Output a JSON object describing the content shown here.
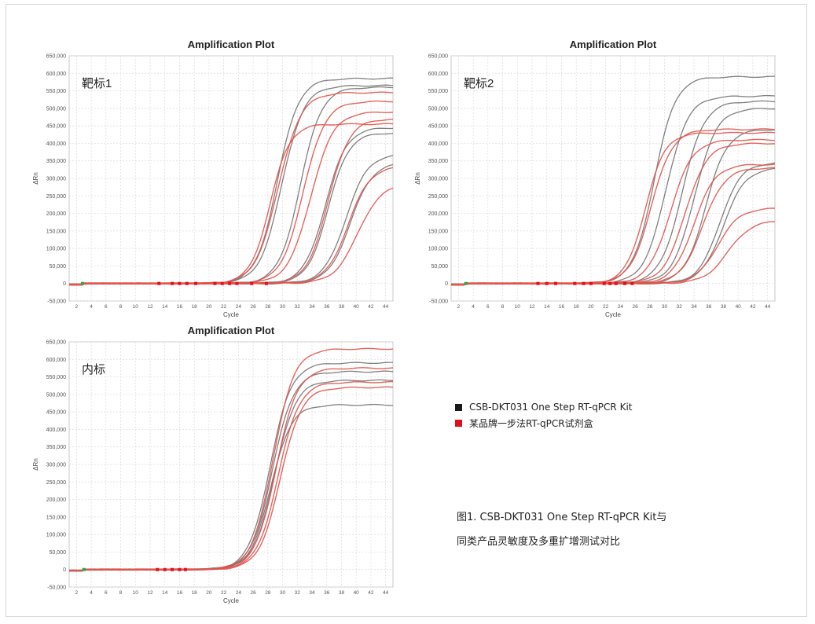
{
  "colors": {
    "kit": "#1a1a1a",
    "competitor": "#e0101c",
    "kit_line": "#6a6a6a",
    "competitor_line": "#e2534b",
    "grid": "#dcdcdc",
    "marker_green": "#2aa84a"
  },
  "legend": {
    "items": [
      {
        "label": "CSB-DKT031 One Step RT-qPCR Kit",
        "color": "#1a1a1a"
      },
      {
        "label": "某品牌一步法RT-qPCR试剂盒",
        "color": "#e0101c"
      }
    ]
  },
  "caption": {
    "line1": "图1. CSB-DKT031 One Step RT-qPCR Kit与",
    "line2": "同类产品灵敏度及多重扩增测试对比"
  },
  "chart_data": [
    {
      "type": "line",
      "title": "Amplification Plot",
      "panel_label": "靶标1",
      "xlabel": "Cycle",
      "ylabel": "ΔRn",
      "xlim": [
        1,
        45
      ],
      "ylim": [
        -50000,
        650000
      ],
      "x_ticks": [
        "2",
        "4",
        "6",
        "8",
        "10",
        "12",
        "14",
        "16",
        "18",
        "20",
        "22",
        "24",
        "26",
        "28",
        "30",
        "32",
        "34",
        "36",
        "38",
        "40",
        "42",
        "44"
      ],
      "y_ticks": [
        "-50,000",
        "0",
        "50,000",
        "100,000",
        "150,000",
        "200,000",
        "250,000",
        "300,000",
        "350,000",
        "400,000",
        "450,000",
        "500,000",
        "550,000",
        "600,000",
        "650,000"
      ],
      "series": [
        {
          "name": "kit",
          "kit": true,
          "ct": 29.3,
          "plateau": 585000,
          "slope": 1.45
        },
        {
          "name": "kit",
          "kit": true,
          "ct": 29.9,
          "plateau": 565000,
          "slope": 1.5
        },
        {
          "name": "kit",
          "kit": true,
          "ct": 32.4,
          "plateau": 560000,
          "slope": 1.45
        },
        {
          "name": "kit",
          "kit": true,
          "ct": 35.8,
          "plateau": 445000,
          "slope": 1.45
        },
        {
          "name": "kit",
          "kit": true,
          "ct": 36.2,
          "plateau": 430000,
          "slope": 1.4
        },
        {
          "name": "kit",
          "kit": true,
          "ct": 38.6,
          "plateau": 370000,
          "slope": 1.5
        },
        {
          "name": "kit",
          "kit": true,
          "ct": 39.2,
          "plateau": 345000,
          "slope": 1.5
        },
        {
          "name": "competitor",
          "kit": false,
          "ct": 28.3,
          "plateau": 455000,
          "slope": 1.35
        },
        {
          "name": "competitor",
          "kit": false,
          "ct": 29.4,
          "plateau": 545000,
          "slope": 1.55
        },
        {
          "name": "competitor",
          "kit": false,
          "ct": 32.8,
          "plateau": 520000,
          "slope": 1.5
        },
        {
          "name": "competitor",
          "kit": false,
          "ct": 33.8,
          "plateau": 490000,
          "slope": 1.55
        },
        {
          "name": "competitor",
          "kit": false,
          "ct": 36.2,
          "plateau": 470000,
          "slope": 1.45
        },
        {
          "name": "competitor",
          "kit": false,
          "ct": 38.9,
          "plateau": 335000,
          "slope": 1.5
        },
        {
          "name": "competitor",
          "kit": false,
          "ct": 40.2,
          "plateau": 285000,
          "slope": 1.6
        }
      ],
      "markers": [
        {
          "x": 2.8,
          "color": "#2aa84a"
        },
        {
          "x": 13.2,
          "color": "#e0101c"
        },
        {
          "x": 15.0,
          "color": "#e0101c"
        },
        {
          "x": 16.0,
          "color": "#e0101c"
        },
        {
          "x": 17.0,
          "color": "#e0101c"
        },
        {
          "x": 18.2,
          "color": "#e0101c"
        },
        {
          "x": 20.8,
          "color": "#e0101c"
        },
        {
          "x": 21.8,
          "color": "#e0101c"
        },
        {
          "x": 22.8,
          "color": "#e0101c"
        },
        {
          "x": 23.8,
          "color": "#e0101c"
        },
        {
          "x": 25.8,
          "color": "#e0101c"
        },
        {
          "x": 27.8,
          "color": "#e0101c"
        }
      ]
    },
    {
      "type": "line",
      "title": "Amplification Plot",
      "panel_label": "靶标2",
      "xlabel": "Cycle",
      "ylabel": "ΔRn",
      "xlim": [
        1,
        45
      ],
      "ylim": [
        -50000,
        650000
      ],
      "x_ticks": [
        "2",
        "4",
        "6",
        "8",
        "10",
        "12",
        "14",
        "16",
        "18",
        "20",
        "22",
        "24",
        "26",
        "28",
        "30",
        "32",
        "34",
        "36",
        "38",
        "40",
        "42",
        "44"
      ],
      "y_ticks": [
        "-50,000",
        "0",
        "50,000",
        "100,000",
        "150,000",
        "200,000",
        "250,000",
        "300,000",
        "350,000",
        "400,000",
        "450,000",
        "500,000",
        "550,000",
        "600,000",
        "650,000"
      ],
      "series": [
        {
          "name": "kit",
          "kit": true,
          "ct": 28.6,
          "plateau": 590000,
          "slope": 1.45
        },
        {
          "name": "kit",
          "kit": true,
          "ct": 30.2,
          "plateau": 535000,
          "slope": 1.5
        },
        {
          "name": "kit",
          "kit": true,
          "ct": 32.4,
          "plateau": 520000,
          "slope": 1.5
        },
        {
          "name": "kit",
          "kit": true,
          "ct": 34.1,
          "plateau": 500000,
          "slope": 1.5
        },
        {
          "name": "kit",
          "kit": true,
          "ct": 35.6,
          "plateau": 440000,
          "slope": 1.45
        },
        {
          "name": "kit",
          "kit": true,
          "ct": 37.5,
          "plateau": 345000,
          "slope": 1.45
        },
        {
          "name": "kit",
          "kit": true,
          "ct": 38.0,
          "plateau": 330000,
          "slope": 1.5
        },
        {
          "name": "competitor",
          "kit": false,
          "ct": 27.4,
          "plateau": 430000,
          "slope": 1.35
        },
        {
          "name": "competitor",
          "kit": false,
          "ct": 28.2,
          "plateau": 440000,
          "slope": 1.45
        },
        {
          "name": "competitor",
          "kit": false,
          "ct": 30.8,
          "plateau": 410000,
          "slope": 1.5
        },
        {
          "name": "competitor",
          "kit": false,
          "ct": 32.8,
          "plateau": 400000,
          "slope": 1.5
        },
        {
          "name": "competitor",
          "kit": false,
          "ct": 34.0,
          "plateau": 340000,
          "slope": 1.45
        },
        {
          "name": "competitor",
          "kit": false,
          "ct": 35.2,
          "plateau": 330000,
          "slope": 1.5
        },
        {
          "name": "competitor",
          "kit": false,
          "ct": 37.2,
          "plateau": 215000,
          "slope": 1.5
        },
        {
          "name": "competitor",
          "kit": false,
          "ct": 38.6,
          "plateau": 180000,
          "slope": 1.6
        }
      ],
      "markers": [
        {
          "x": 3.0,
          "color": "#2aa84a"
        },
        {
          "x": 12.8,
          "color": "#e0101c"
        },
        {
          "x": 14.0,
          "color": "#e0101c"
        },
        {
          "x": 15.2,
          "color": "#e0101c"
        },
        {
          "x": 17.8,
          "color": "#e0101c"
        },
        {
          "x": 19.0,
          "color": "#e0101c"
        },
        {
          "x": 20.0,
          "color": "#e0101c"
        },
        {
          "x": 21.8,
          "color": "#e0101c"
        },
        {
          "x": 22.6,
          "color": "#e0101c"
        },
        {
          "x": 23.4,
          "color": "#e0101c"
        },
        {
          "x": 24.6,
          "color": "#e0101c"
        },
        {
          "x": 25.6,
          "color": "#e0101c"
        }
      ]
    },
    {
      "type": "line",
      "title": "Amplification Plot",
      "panel_label": "内标",
      "xlabel": "Cycle",
      "ylabel": "ΔRn",
      "xlim": [
        1,
        45
      ],
      "ylim": [
        -50000,
        650000
      ],
      "x_ticks": [
        "2",
        "4",
        "6",
        "8",
        "10",
        "12",
        "14",
        "16",
        "18",
        "20",
        "22",
        "24",
        "26",
        "28",
        "30",
        "32",
        "34",
        "36",
        "38",
        "40",
        "42",
        "44"
      ],
      "y_ticks": [
        "-50,000",
        "0",
        "50,000",
        "100,000",
        "150,000",
        "200,000",
        "250,000",
        "300,000",
        "350,000",
        "400,000",
        "450,000",
        "500,000",
        "550,000",
        "600,000",
        "650,000"
      ],
      "series": [
        {
          "name": "kit",
          "kit": true,
          "ct": 28.3,
          "plateau": 590000,
          "slope": 1.45
        },
        {
          "name": "kit",
          "kit": true,
          "ct": 28.6,
          "plateau": 565000,
          "slope": 1.45
        },
        {
          "name": "kit",
          "kit": true,
          "ct": 28.9,
          "plateau": 540000,
          "slope": 1.45
        },
        {
          "name": "kit",
          "kit": true,
          "ct": 28.4,
          "plateau": 470000,
          "slope": 1.4
        },
        {
          "name": "competitor",
          "kit": false,
          "ct": 28.7,
          "plateau": 630000,
          "slope": 1.45
        },
        {
          "name": "competitor",
          "kit": false,
          "ct": 29.1,
          "plateau": 575000,
          "slope": 1.45
        },
        {
          "name": "competitor",
          "kit": false,
          "ct": 29.4,
          "plateau": 535000,
          "slope": 1.45
        },
        {
          "name": "competitor",
          "kit": false,
          "ct": 29.7,
          "plateau": 520000,
          "slope": 1.45
        }
      ],
      "markers": [
        {
          "x": 3.0,
          "color": "#2aa84a"
        },
        {
          "x": 13.0,
          "color": "#e0101c"
        },
        {
          "x": 14.0,
          "color": "#e0101c"
        },
        {
          "x": 15.0,
          "color": "#e0101c"
        },
        {
          "x": 16.0,
          "color": "#e0101c"
        },
        {
          "x": 16.8,
          "color": "#e0101c"
        }
      ]
    }
  ]
}
